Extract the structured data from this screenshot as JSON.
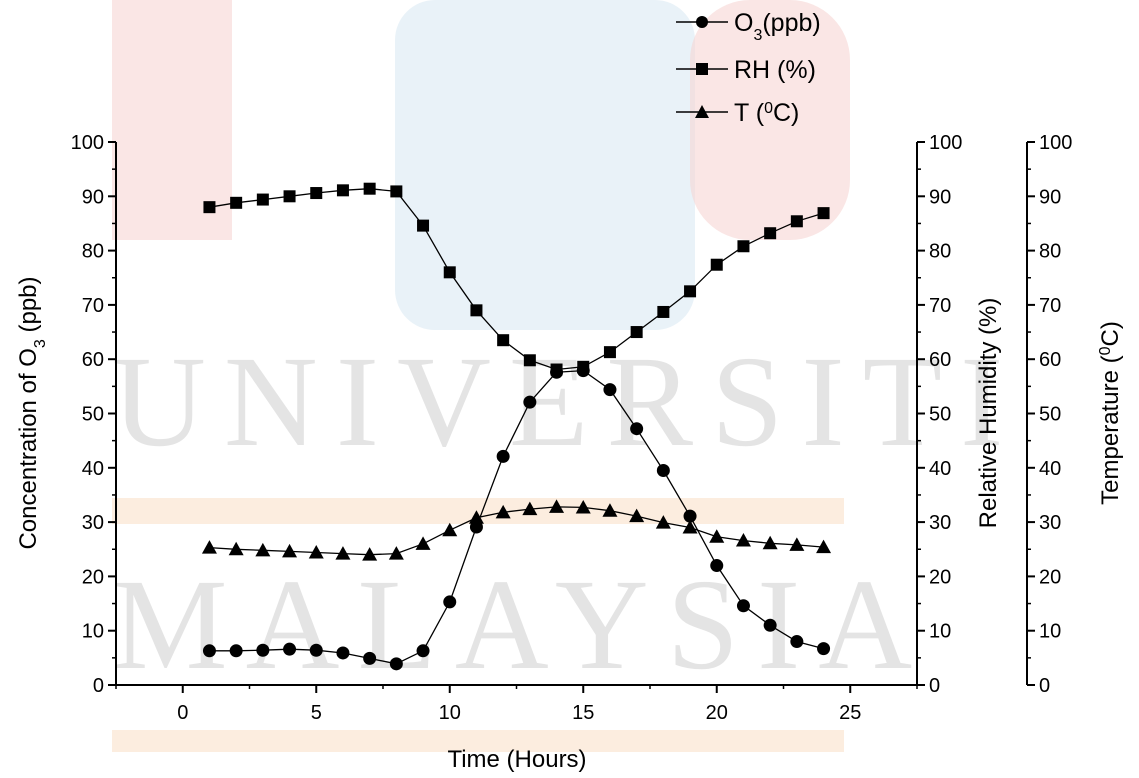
{
  "chart_data": {
    "type": "line",
    "title": "",
    "xlabel": "Time (Hours)",
    "xlim": [
      -2.5,
      27.5
    ],
    "xticks": [
      0,
      5,
      10,
      15,
      20,
      25
    ],
    "axes": {
      "left": {
        "label_prefix": "Concentration of O",
        "label_sub": "3",
        "label_suffix": " (ppb)",
        "ylim": [
          0,
          100
        ],
        "ticks": [
          0,
          10,
          20,
          30,
          40,
          50,
          60,
          70,
          80,
          90,
          100
        ]
      },
      "right1": {
        "label": "Relative Humidity (%)",
        "ylim": [
          0,
          100
        ],
        "ticks": [
          0,
          10,
          20,
          30,
          40,
          50,
          60,
          70,
          80,
          90,
          100
        ]
      },
      "right2": {
        "label_prefix": "Temperature (",
        "label_sup": "0",
        "label_suffix": "C)",
        "ylim": [
          0,
          100
        ],
        "ticks": [
          0,
          10,
          20,
          30,
          40,
          50,
          60,
          70,
          80,
          90,
          100
        ]
      }
    },
    "x": [
      1,
      2,
      3,
      4,
      5,
      6,
      7,
      8,
      9,
      10,
      11,
      12,
      13,
      14,
      15,
      16,
      17,
      18,
      19,
      20,
      21,
      22,
      23,
      24
    ],
    "series": [
      {
        "name": "O3(ppb)",
        "legend_main": "O",
        "legend_sub": "3",
        "legend_suffix": "(ppb)",
        "marker": "circle",
        "axis": "left",
        "values": [
          6.3,
          6.3,
          6.4,
          6.6,
          6.4,
          5.9,
          4.9,
          3.9,
          6.3,
          15.3,
          29.1,
          42.1,
          52.1,
          57.6,
          57.9,
          54.4,
          47.2,
          39.5,
          31.1,
          22.0,
          14.6,
          11.0,
          8.0,
          6.7
        ]
      },
      {
        "name": "RH (%)",
        "legend_main": "RH (%)",
        "marker": "square",
        "axis": "right1",
        "values": [
          88.0,
          88.8,
          89.4,
          90.0,
          90.6,
          91.1,
          91.4,
          90.9,
          84.6,
          76.0,
          69.0,
          63.5,
          59.8,
          58.1,
          58.6,
          61.3,
          65.0,
          68.7,
          72.5,
          77.4,
          80.8,
          83.2,
          85.4,
          86.9
        ]
      },
      {
        "name": "T (0C)",
        "legend_prefix": "T (",
        "legend_sup": "0",
        "legend_suffix": "C)",
        "marker": "triangle",
        "axis": "right2",
        "values": [
          25.3,
          25.0,
          24.8,
          24.6,
          24.4,
          24.2,
          24.0,
          24.2,
          26.0,
          28.5,
          30.8,
          31.8,
          32.4,
          32.8,
          32.7,
          32.1,
          31.1,
          29.9,
          29.0,
          27.3,
          26.6,
          26.1,
          25.8,
          25.4
        ]
      }
    ],
    "grid": false,
    "legend_position": "top-right"
  },
  "watermark": {
    "line1": "UNIVERSITI",
    "line2": "MALAYSIA"
  }
}
